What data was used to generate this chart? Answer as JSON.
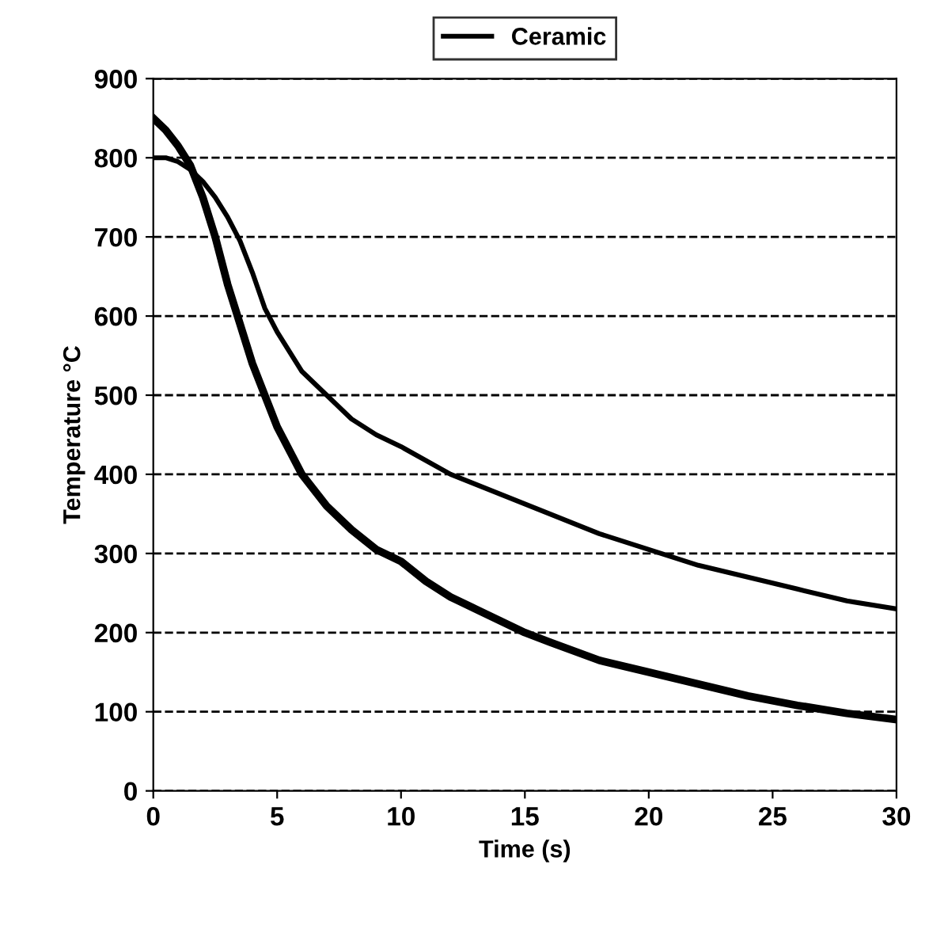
{
  "chart_data": {
    "type": "line",
    "xlabel": "Time (s)",
    "ylabel": "Temperature °C",
    "xlim": [
      0,
      30
    ],
    "ylim": [
      0,
      900
    ],
    "xticks": [
      0,
      5,
      10,
      15,
      20,
      25,
      30
    ],
    "yticks": [
      0,
      100,
      200,
      300,
      400,
      500,
      600,
      700,
      800,
      900
    ],
    "grid": "y",
    "line_style": "solid",
    "legend": "top",
    "marker": "none",
    "series": [
      {
        "color": "#000000",
        "x": [
          0,
          0.5,
          1,
          1.5,
          2,
          2.5,
          3,
          3.5,
          4,
          4.5,
          5,
          6,
          7,
          8,
          9,
          10,
          11,
          12,
          13,
          14,
          15,
          16,
          18,
          20,
          22,
          24,
          26,
          28,
          30
        ],
        "values": [
          850,
          835,
          815,
          790,
          750,
          700,
          640,
          590,
          540,
          500,
          460,
          400,
          360,
          330,
          305,
          290,
          265,
          245,
          230,
          215,
          200,
          188,
          165,
          150,
          135,
          120,
          108,
          98,
          90
        ]
      },
      {
        "name": "Ceramic",
        "color": "#000000",
        "x": [
          0,
          0.5,
          1,
          1.5,
          2,
          2.5,
          3,
          3.5,
          4,
          4.5,
          5,
          6,
          7,
          8,
          9,
          10,
          12,
          14,
          16,
          18,
          20,
          22,
          24,
          26,
          28,
          30
        ],
        "values": [
          800,
          800,
          795,
          785,
          770,
          750,
          725,
          695,
          655,
          610,
          580,
          530,
          500,
          470,
          450,
          435,
          400,
          375,
          350,
          325,
          305,
          285,
          270,
          255,
          240,
          230
        ]
      }
    ]
  }
}
